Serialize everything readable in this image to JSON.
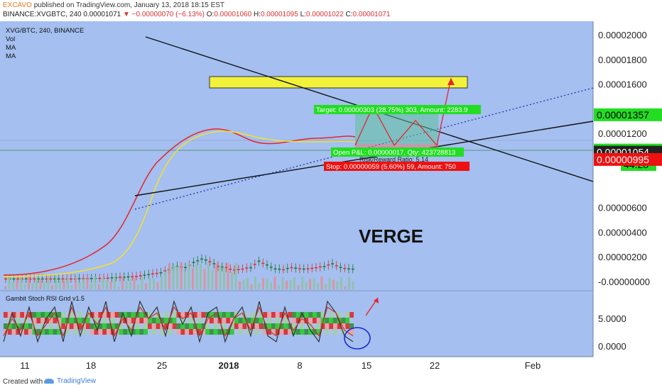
{
  "header": {
    "publisher": "EXCAVO",
    "published_text": " published on TradingView.com, January 13, 2018 18:15 EST",
    "symbol_line": "BINANCE:XVGBTC, 240",
    "last": "0.00001071",
    "change": "▼ −0.00000070 (−6.13%)",
    "open_label": "O:",
    "open": "0.00001060",
    "high_label": "H:",
    "high": "0.00001095",
    "low_label": "L:",
    "low": "0.00001022",
    "close_label": "C:",
    "close": "0.00001071"
  },
  "legend": {
    "title": "XVG/BTC, 240, BINANCE",
    "items": [
      "Vol",
      "MA",
      "MA"
    ]
  },
  "watermark": "VERGE",
  "badges": {
    "target": "Target: 0.00000303 (28.75%) 303, Amount: 2283.9",
    "open_pl": "Open P&L: 0.00000017, Qty: 423728813",
    "rr": "Risk/Reward Ratio: 5.14",
    "stop": "Stop: 0.00000059 (5.60%) 59, Amount: 750"
  },
  "price_tags": [
    {
      "text": "0.00001357",
      "color": "#22dd22",
      "text_color": "#000000",
      "value": 1.357e-05
    },
    {
      "text": "0.00001071",
      "color": "#22dd22",
      "text_color": "#000000",
      "value": 1.071e-05
    },
    {
      "text": "44:28",
      "color": "#22dd22",
      "text_color": "#000000",
      "value": 9.5e-06
    },
    {
      "text": "0.00001054",
      "color": "#222222",
      "text_color": "#ffffff",
      "value": 1.054e-05
    },
    {
      "text": "0.00000995",
      "color": "#ee1111",
      "text_color": "#ffffff",
      "value": 9.95e-06
    }
  ],
  "indicator": {
    "title": "Gambit Stoch RSI Grid v1.5",
    "y_ticks": [
      "5.0000",
      "0.0000"
    ]
  },
  "footer": {
    "created": "Created with",
    "brand": "TradingView"
  },
  "colors": {
    "background": "#a4bff0",
    "candle_up": "#1f7a3a",
    "candle_down": "#e03030",
    "ma_fast": "#e8242a",
    "ma_slow": "#f5e22a",
    "zone": "#f2f23a"
  },
  "chart_data": [
    {
      "type": "candlestick",
      "title": "XVG/BTC, 240, BINANCE",
      "x_ticks": [
        "11",
        "18",
        "25",
        "2018",
        "8",
        "15",
        "22",
        "Feb"
      ],
      "y_ticks": [
        "0.00002000",
        "0.00001800",
        "0.00001600",
        "0.00001200",
        "0.00000600",
        "0.00000400",
        "0.00000200",
        "-0.00000000"
      ],
      "ylim": [
        -1e-07,
        2.1e-06
      ],
      "series": [
        {
          "name": "close",
          "points": [
            [
              0,
              3e-07
            ],
            [
              8,
              3e-07
            ],
            [
              12,
              3.5e-07
            ],
            [
              16,
              5e-07
            ],
            [
              19,
              8e-07
            ],
            [
              21,
              1.3e-06
            ],
            [
              22,
              1.2e-06
            ],
            [
              23,
              1.6e-06
            ],
            [
              24,
              1.9e-06
            ],
            [
              25,
              1.7e-06
            ],
            [
              26,
              1.3e-06
            ],
            [
              27,
              1.2e-06
            ],
            [
              28,
              1e-06
            ],
            [
              29,
              1.1e-06
            ],
            [
              30,
              1.2e-06
            ],
            [
              31,
              1.7e-06
            ],
            [
              32,
              1.4e-06
            ],
            [
              33,
              1.1e-06
            ],
            [
              34,
              1.05e-06
            ],
            [
              35,
              1.2e-06
            ],
            [
              36,
              1.1e-06
            ],
            [
              37,
              1.1e-06
            ],
            [
              38,
              1.2e-06
            ],
            [
              39,
              1.3e-06
            ],
            [
              40,
              1.5e-06
            ],
            [
              41,
              1.2e-06
            ],
            [
              42,
              1.1e-06
            ],
            [
              43,
              1.07e-06
            ]
          ]
        },
        {
          "name": "MA fast",
          "points": [
            [
              0,
              5e-08
            ],
            [
              10,
              1.2e-07
            ],
            [
              15,
              2e-07
            ],
            [
              19,
              5e-07
            ],
            [
              21,
              9e-07
            ],
            [
              23,
              1.3e-06
            ],
            [
              25,
              1.5e-06
            ],
            [
              28,
              1.2e-06
            ],
            [
              31,
              1.3e-06
            ],
            [
              33,
              1.2e-06
            ],
            [
              37,
              1.1e-06
            ],
            [
              40,
              1.2e-06
            ],
            [
              43,
              1.2e-06
            ]
          ]
        },
        {
          "name": "MA slow",
          "points": [
            [
              0,
              5e-08
            ],
            [
              12,
              1e-07
            ],
            [
              17,
              3e-07
            ],
            [
              20,
              5e-07
            ],
            [
              22,
              8e-07
            ],
            [
              24,
              1.1e-06
            ],
            [
              27,
              1.2e-06
            ],
            [
              31,
              1.2e-06
            ],
            [
              35,
              1.1e-06
            ],
            [
              40,
              1.1e-06
            ],
            [
              43,
              1.1e-06
            ]
          ]
        }
      ],
      "zone": {
        "from": 1.5e-06,
        "to": 1.65e-06
      },
      "trendlines": [
        "descending resistance",
        "ascending support",
        "dotted ascending"
      ]
    },
    {
      "type": "line",
      "title": "Gambit Stoch RSI Grid v1.5",
      "y_ticks": [
        "5.0000",
        "0.0000"
      ],
      "series": [
        {
          "name": "K",
          "values": [
            1,
            6,
            2,
            7,
            1,
            5,
            7,
            1,
            8,
            2,
            7,
            3,
            8,
            1,
            6,
            2,
            8,
            5,
            7,
            2,
            8,
            4,
            7,
            1,
            6,
            7,
            1,
            5,
            7,
            2,
            8,
            2,
            1,
            7,
            2,
            6,
            3,
            1,
            8,
            6,
            2,
            1
          ]
        },
        {
          "name": "D",
          "values": [
            2,
            5,
            3,
            6,
            2,
            4,
            6,
            2,
            7,
            3,
            6,
            4,
            7,
            2,
            5,
            3,
            7,
            5,
            6,
            3,
            7,
            5,
            6,
            2,
            5,
            6,
            2,
            5,
            6,
            3,
            7,
            3,
            2,
            6,
            3,
            5,
            4,
            2,
            7,
            6,
            3,
            2
          ]
        }
      ]
    }
  ]
}
